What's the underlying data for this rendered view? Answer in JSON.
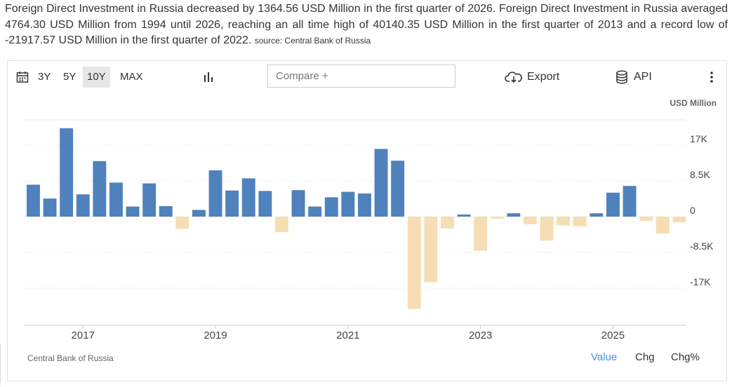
{
  "description": {
    "text": "Foreign Direct Investment in Russia decreased by 1364.56 USD Million in the first quarter of 2026. Foreign Direct Investment in Russia averaged 4764.30 USD Million from 1994 until 2026, reaching an all time high of 40140.35 USD Million in the first quarter of 2013 and a record low of -21917.57 USD Million in the first quarter of 2022.",
    "source": "source: Central Bank of Russia"
  },
  "toolbar": {
    "ranges": [
      "3Y",
      "5Y",
      "10Y",
      "MAX"
    ],
    "active_range": "10Y",
    "compare_placeholder": "Compare +",
    "export_label": "Export",
    "api_label": "API"
  },
  "footer": {
    "source": "Central Bank of Russia",
    "modes": [
      "Value",
      "Chg",
      "Chg%"
    ],
    "active_mode": "Value"
  },
  "colors": {
    "positive": "#4f81bd",
    "negative": "#f5deb3",
    "accent": "#4a90d9"
  },
  "chart_data": {
    "type": "bar",
    "unit": "USD Million",
    "ylim": [
      -22000,
      23000
    ],
    "yticks": [
      17000,
      8500,
      0,
      -8500,
      -17000
    ],
    "ytick_labels": [
      "17K",
      "8.5K",
      "0",
      "-8.5K",
      "-17K"
    ],
    "xtick_labels": [
      "2017",
      "2019",
      "2021",
      "2023",
      "2025"
    ],
    "categories": [
      "2016 Q2",
      "2016 Q3",
      "2016 Q4",
      "2017 Q1",
      "2017 Q2",
      "2017 Q3",
      "2017 Q4",
      "2018 Q1",
      "2018 Q2",
      "2018 Q3",
      "2018 Q4",
      "2019 Q1",
      "2019 Q2",
      "2019 Q3",
      "2019 Q4",
      "2020 Q1",
      "2020 Q2",
      "2020 Q3",
      "2020 Q4",
      "2021 Q1",
      "2021 Q2",
      "2021 Q3",
      "2021 Q4",
      "2022 Q1",
      "2022 Q2",
      "2022 Q3",
      "2022 Q4",
      "2023 Q1",
      "2023 Q2",
      "2023 Q3",
      "2023 Q4",
      "2024 Q1",
      "2024 Q2",
      "2024 Q3",
      "2024 Q4",
      "2025 Q1",
      "2025 Q2",
      "2025 Q3",
      "2025 Q4",
      "2026 Q1"
    ],
    "values": [
      7600,
      4300,
      21000,
      5300,
      13200,
      8100,
      2400,
      7900,
      2500,
      -2900,
      1600,
      11000,
      6200,
      9100,
      6100,
      -3700,
      6300,
      2400,
      4600,
      5900,
      5500,
      16100,
      13300,
      -21918,
      -15600,
      -2800,
      500,
      -8100,
      -500,
      800,
      -1800,
      -5700,
      -2100,
      -2300,
      800,
      5700,
      7300,
      -1000,
      -4000,
      -1364.56
    ],
    "grid": true,
    "legend": "none"
  }
}
